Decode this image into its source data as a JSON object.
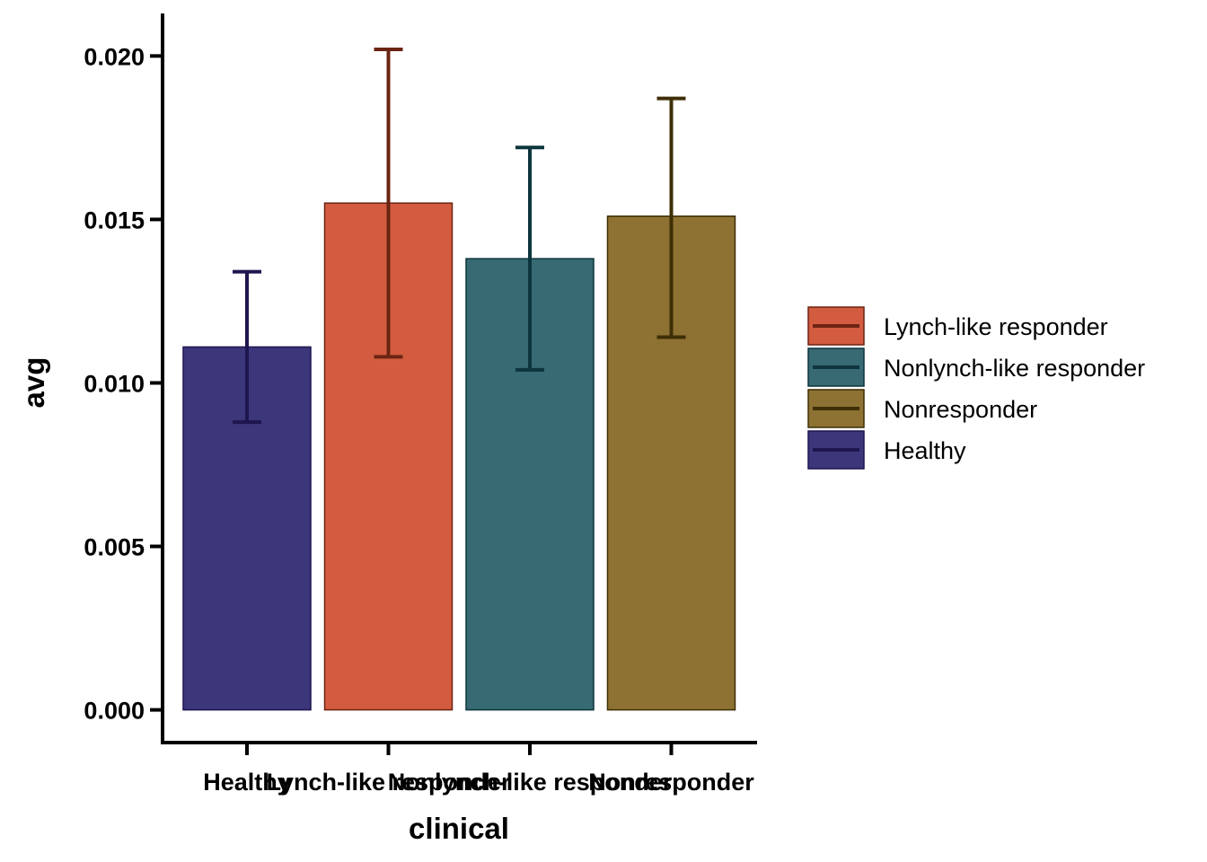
{
  "chart_data": {
    "type": "bar",
    "xlabel": "clinical",
    "ylabel": "avg",
    "ylim": [
      -0.001,
      0.0213
    ],
    "yticks": [
      0.0,
      0.005,
      0.01,
      0.015,
      0.02
    ],
    "ytick_labels": [
      "0.000",
      "0.005",
      "0.010",
      "0.015",
      "0.020"
    ],
    "grid": false,
    "legend_position": "right",
    "categories": [
      "Healthy",
      "Lynch-like responder",
      "Nonlynch-like responder",
      "Nonresponder"
    ],
    "values": [
      0.0111,
      0.0155,
      0.0138,
      0.0151
    ],
    "error_low": [
      0.0088,
      0.0108,
      0.0104,
      0.0114
    ],
    "error_high": [
      0.0134,
      0.0202,
      0.0172,
      0.0187
    ],
    "colors": {
      "Healthy": {
        "fill": "#3c367a",
        "stroke": "#1f1650"
      },
      "Lynch-like responder": {
        "fill": "#d35c40",
        "stroke": "#6b2412"
      },
      "Nonlynch-like responder": {
        "fill": "#376a72",
        "stroke": "#0d353d"
      },
      "Nonresponder": {
        "fill": "#8e7233",
        "stroke": "#3e2f06"
      }
    },
    "legend": [
      "Lynch-like responder",
      "Nonlynch-like responder",
      "Nonresponder",
      "Healthy"
    ]
  }
}
